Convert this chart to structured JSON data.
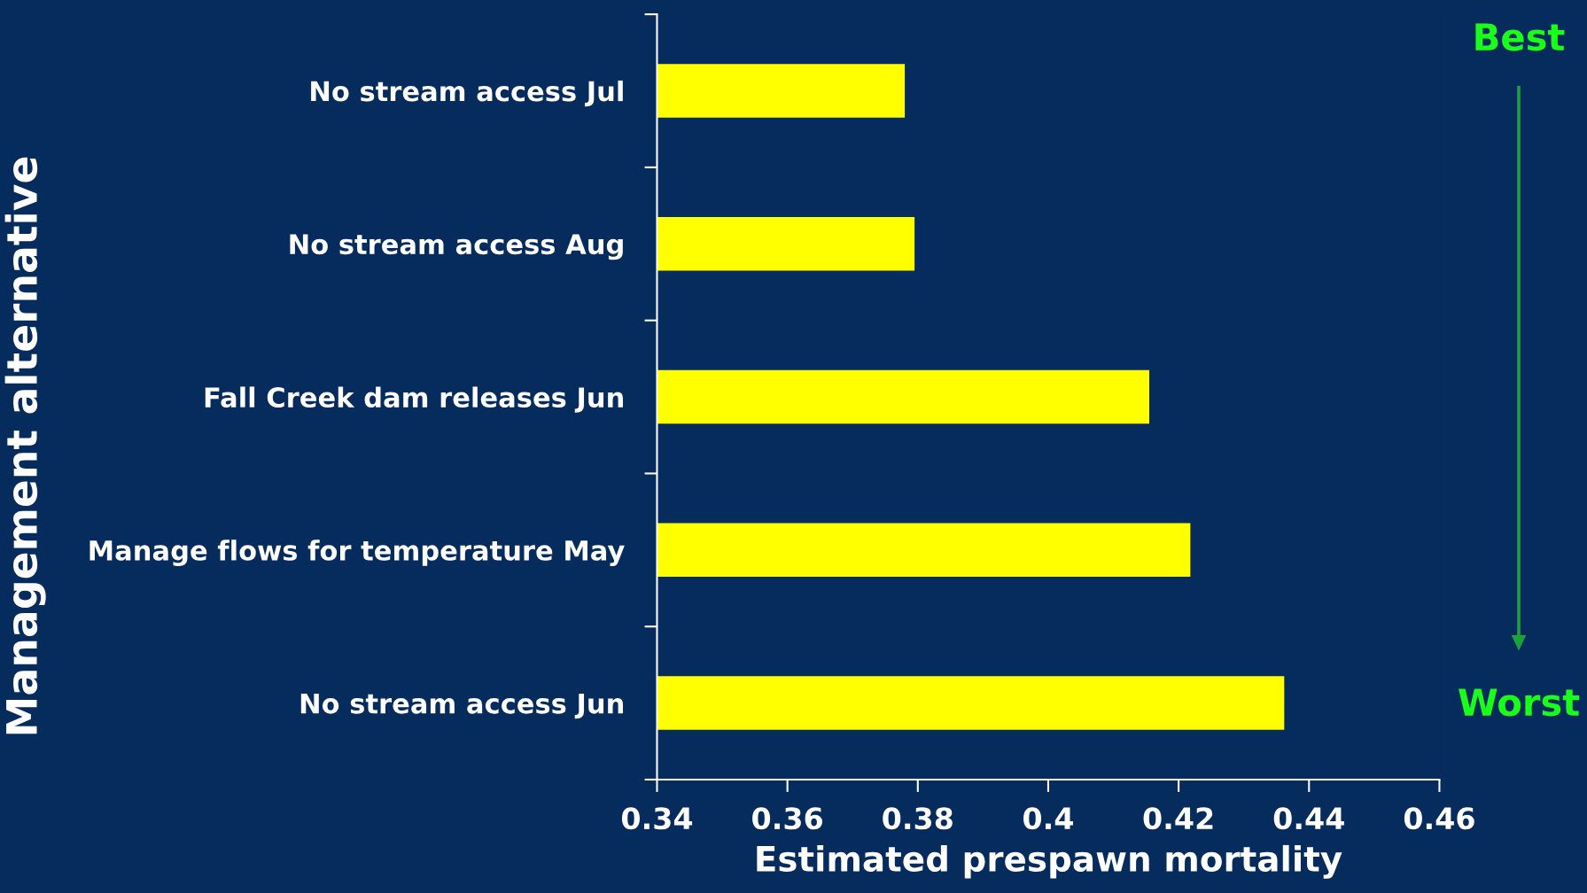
{
  "chart_data": {
    "type": "bar",
    "orientation": "horizontal",
    "categories": [
      "No stream access Jul",
      "No stream access Aug",
      "Fall Creek dam releases Jun",
      "Manage flows for temperature May",
      "No stream access Jun"
    ],
    "values": [
      0.378,
      0.3795,
      0.4155,
      0.4218,
      0.4362
    ],
    "color": "#ffff00",
    "xlabel": "Estimated prespawn mortality",
    "ylabel": "Management alternative",
    "xlim": [
      0.34,
      0.46
    ],
    "xticks": [
      0.34,
      0.36,
      0.38,
      0.4,
      0.42,
      0.44,
      0.46
    ],
    "annotations": [
      "Best",
      "Worst"
    ],
    "grid": false,
    "legend": false
  }
}
